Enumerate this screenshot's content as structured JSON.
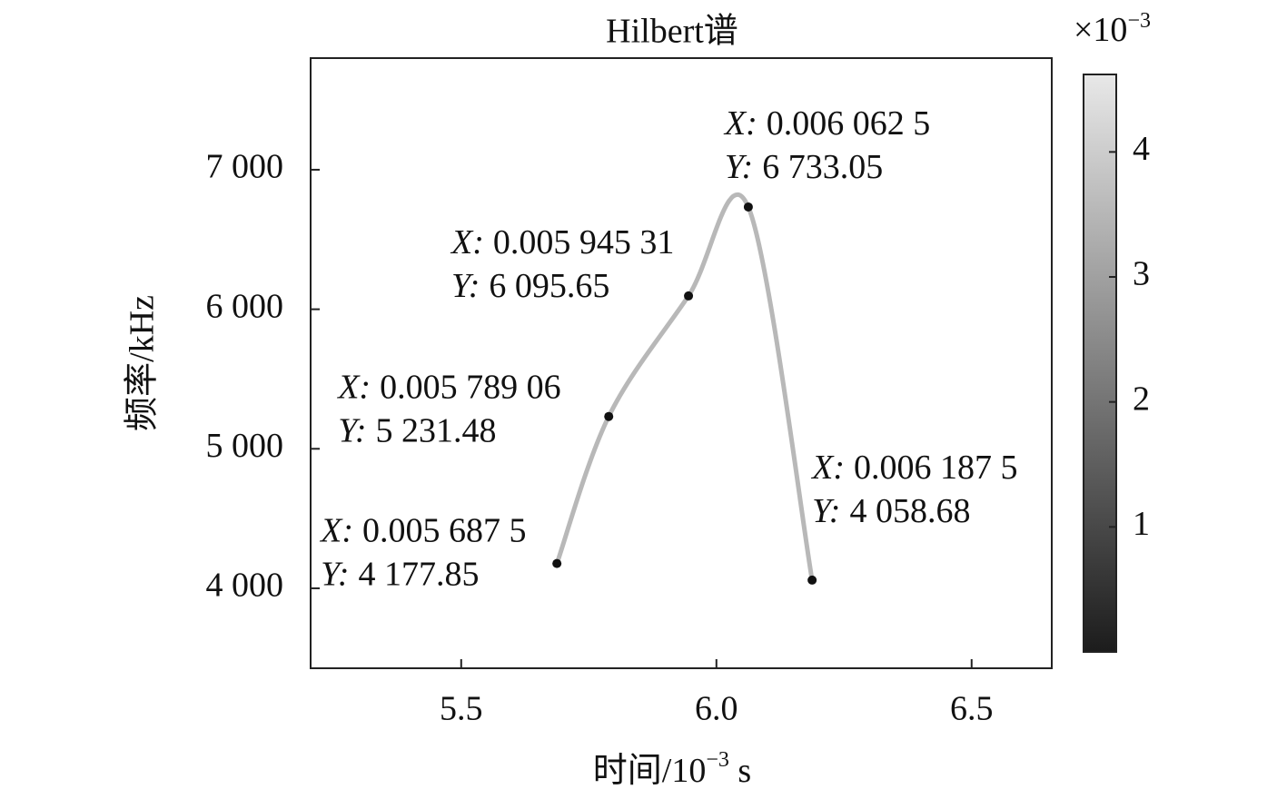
{
  "chart_data": {
    "type": "line",
    "title": "Hilbert谱",
    "xlabel_parts": [
      "时间/10",
      "−3",
      " s"
    ],
    "ylabel": "频率/kHz",
    "x": [
      5.6875,
      5.78906,
      5.94531,
      6.0625,
      6.1875
    ],
    "series": [
      {
        "name": "Hilbert",
        "color": "#b8b8b8",
        "values": [
          4177.85,
          5231.48,
          6095.65,
          6733.05,
          4058.68
        ]
      }
    ],
    "tip_x_prefix": "X:",
    "tip_y_prefix": "Y:",
    "x_value_labels": [
      "0.005 687 5",
      "0.005 789 06",
      "0.005 945 31",
      "0.006 062 5",
      "0.006 187 5"
    ],
    "value_labels": [
      "4 177.85",
      "5 231.48",
      "6 095.65",
      "6 733.05",
      "4 058.68"
    ],
    "xlim": [
      5.205,
      6.657
    ],
    "xticks": [
      5.5,
      {
        "value": 6.0,
        "label": "6.0"
      },
      6.5
    ],
    "ylim": [
      3427,
      7800
    ],
    "yticks": [
      {
        "value": 4000,
        "label": "4 000"
      },
      {
        "value": 5000,
        "label": "5 000"
      },
      {
        "value": 6000,
        "label": "6 000"
      },
      {
        "value": 7000,
        "label": "7 000"
      }
    ],
    "colorbar": {
      "clim": [
        0,
        4.62
      ],
      "ticks": [
        1,
        2,
        3,
        4
      ],
      "exponent_base": "×10",
      "exponent": "−3",
      "colormap": [
        "#1c1c1c",
        "#e8e8e8"
      ]
    },
    "point_color": "#111111"
  }
}
